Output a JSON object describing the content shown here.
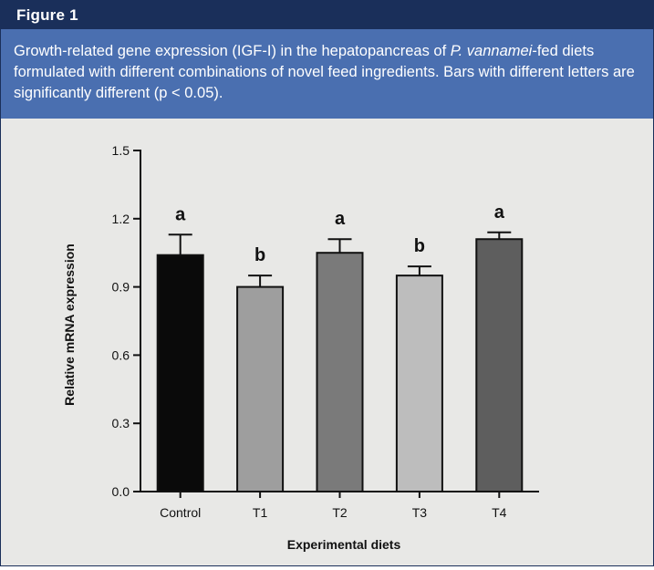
{
  "header": {
    "title": "Figure 1"
  },
  "caption": {
    "part1": "Growth-related gene expression (IGF-I) in the hepatopancreas of ",
    "species": "P. vannamei",
    "part2": "-fed diets formulated with different combinations of novel feed ingredients. Bars with different letters are significantly different (p < 0.05)."
  },
  "colors": {
    "title_bar": "#1a2f5a",
    "caption_bg": "#4a6fb0",
    "panel_bg": "#e8e8e6"
  },
  "chart_data": {
    "type": "bar",
    "xlabel": "Experimental diets",
    "ylabel": "Relative mRNA expression",
    "categories": [
      "Control",
      "T1",
      "T2",
      "T3",
      "T4"
    ],
    "values": [
      1.04,
      0.9,
      1.05,
      0.95,
      1.11
    ],
    "errors": [
      0.09,
      0.05,
      0.06,
      0.04,
      0.03
    ],
    "letters": [
      "a",
      "b",
      "a",
      "b",
      "a"
    ],
    "bar_colors": [
      "#0a0a0a",
      "#9e9e9e",
      "#7a7a7a",
      "#bdbdbd",
      "#5e5e5e"
    ],
    "ylim": [
      0,
      1.5
    ],
    "yticks": [
      0.0,
      0.3,
      0.6,
      0.9,
      1.2,
      1.5
    ],
    "ytick_labels": [
      "0.0",
      "0.3",
      "0.6",
      "0.9",
      "1.2",
      "1.5"
    ],
    "grid": false
  }
}
